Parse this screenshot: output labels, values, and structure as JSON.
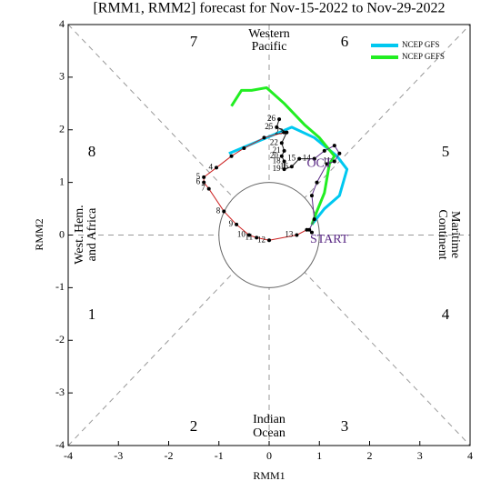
{
  "chart_data": {
    "type": "phase",
    "title": "[RMM1, RMM2] forecast for Nov-15-2022 to Nov-29-2022",
    "xlabel": "RMM1",
    "ylabel": "RMM2",
    "xlim": [
      -4,
      4
    ],
    "ylim": [
      -4,
      4
    ],
    "xticks": [
      -4,
      -3,
      -2,
      -1,
      0,
      1,
      2,
      3,
      4
    ],
    "yticks": [
      -4,
      -3,
      -2,
      -1,
      0,
      1,
      2,
      3,
      4
    ],
    "phases": [
      "1",
      "2",
      "3",
      "4",
      "5",
      "6",
      "7",
      "8"
    ],
    "regions": [
      [
        "Western",
        "Pacific"
      ],
      [
        "Indian",
        "Ocean"
      ],
      [
        "West. Hem.",
        "and Africa"
      ],
      [
        "Maritime",
        "Continent"
      ]
    ],
    "tracks": [
      {
        "color": "#cc2222",
        "x": [
          0.3,
          -0.1,
          -0.5,
          -0.75,
          -1.05,
          -1.3,
          -1.3,
          -1.2,
          -0.9,
          -0.65,
          -0.4,
          -0.25,
          0.0,
          0.55,
          0.75
        ],
        "y": [
          1.95,
          1.85,
          1.65,
          1.5,
          1.28,
          1.1,
          1.0,
          0.88,
          0.45,
          0.2,
          0.0,
          -0.05,
          -0.1,
          0.0,
          0.1
        ],
        "point_labels": [
          null,
          null,
          null,
          null,
          "4",
          "5",
          "6",
          "7",
          "8",
          "9",
          "10",
          "11",
          "12",
          "13",
          null
        ]
      },
      {
        "color": "#1a1a1a",
        "x": [
          0.2,
          0.15,
          0.35,
          0.25,
          0.3,
          0.25,
          0.3,
          0.3,
          0.45,
          0.6,
          0.9
        ],
        "y": [
          2.2,
          2.05,
          1.95,
          1.75,
          1.6,
          1.5,
          1.4,
          1.25,
          1.3,
          1.45,
          1.45
        ],
        "point_labels": [
          "26",
          "25",
          "23",
          "22",
          "21",
          "20",
          "18",
          "19",
          "16",
          "15",
          "14"
        ]
      },
      {
        "color": "#5b2a86",
        "x": [
          0.9,
          1.1,
          1.3,
          1.4,
          1.3,
          1.15,
          0.95,
          0.85,
          0.9,
          0.8,
          0.85
        ],
        "y": [
          1.45,
          1.6,
          1.7,
          1.55,
          1.4,
          1.35,
          1.0,
          0.75,
          0.3,
          0.1,
          0.05
        ],
        "point_labels": [
          null,
          null,
          null,
          null,
          "11",
          null,
          null,
          null,
          null,
          null,
          "START"
        ]
      }
    ],
    "annotations": [
      {
        "text": "OCT",
        "x": 0.75,
        "y": 1.35
      }
    ],
    "legend": "upper right",
    "series": [
      {
        "name": "NCEP GFS",
        "color": "#00c8f0",
        "x": [
          0.85,
          1.1,
          1.4,
          1.55,
          1.35,
          0.9,
          0.45,
          -0.8
        ],
        "y": [
          0.2,
          0.5,
          0.75,
          1.25,
          1.5,
          1.85,
          2.05,
          1.55
        ]
      },
      {
        "name": "NCEP GEFS",
        "color": "#22ee22",
        "x": [
          0.85,
          0.95,
          1.1,
          1.2,
          1.3,
          1.0,
          0.7,
          0.3,
          -0.05,
          -0.35,
          -0.55,
          -0.75
        ],
        "y": [
          0.2,
          0.45,
          0.8,
          1.35,
          1.5,
          1.85,
          2.1,
          2.5,
          2.8,
          2.75,
          2.75,
          2.45
        ]
      }
    ]
  }
}
